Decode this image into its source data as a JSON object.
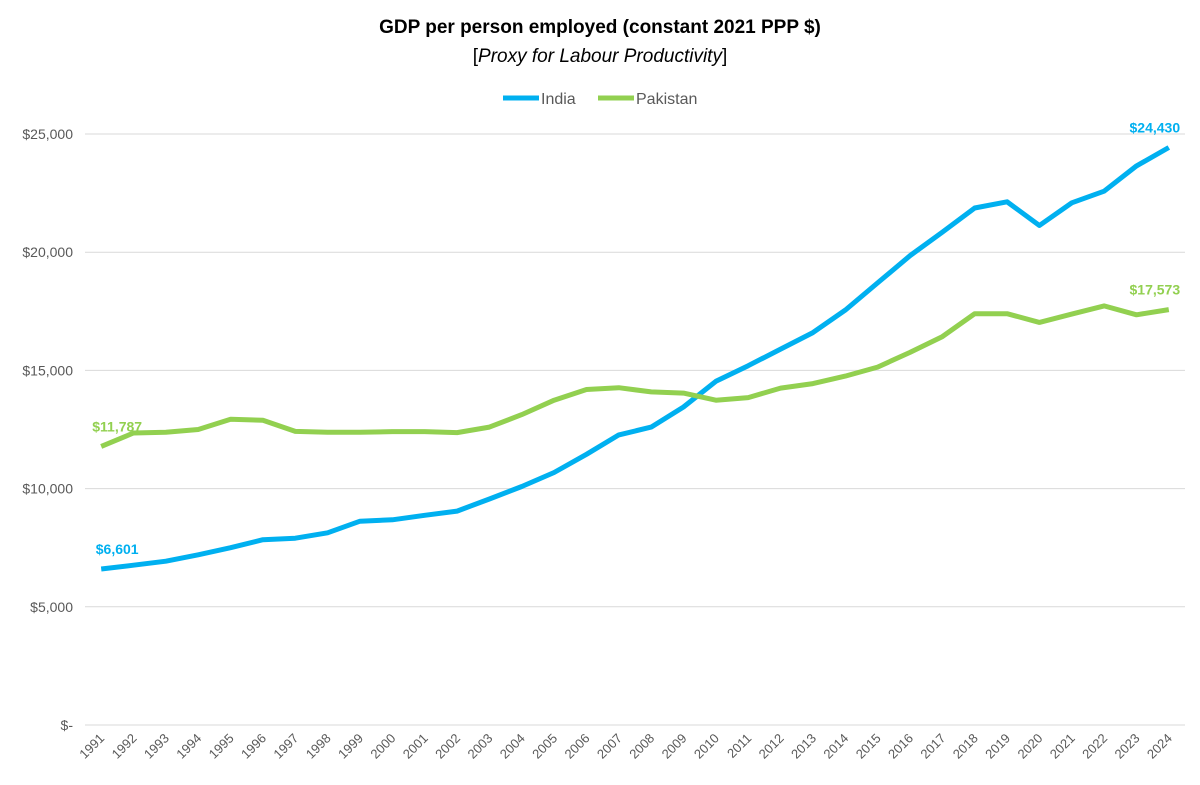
{
  "chart_data": {
    "type": "line",
    "title": "GDP per person employed (constant 2021 PPP $)",
    "subtitle_open": "[",
    "subtitle_italic": "Proxy for Labour Productivity",
    "subtitle_close": "]",
    "xlabel": "",
    "ylabel": "",
    "ylim": [
      0,
      25000
    ],
    "yticks": [
      0,
      5000,
      10000,
      15000,
      20000,
      25000
    ],
    "ytick_labels": [
      "$-",
      "$5,000",
      "$10,000",
      "$15,000",
      "$20,000",
      "$25,000"
    ],
    "grid": true,
    "legend_position": "top-center",
    "x": [
      "1991",
      "1992",
      "1993",
      "1994",
      "1995",
      "1996",
      "1997",
      "1998",
      "1999",
      "2000",
      "2001",
      "2002",
      "2003",
      "2004",
      "2005",
      "2006",
      "2007",
      "2008",
      "2009",
      "2010",
      "2011",
      "2012",
      "2013",
      "2014",
      "2015",
      "2016",
      "2017",
      "2018",
      "2019",
      "2020",
      "2021",
      "2022",
      "2023",
      "2024"
    ],
    "series": [
      {
        "name": "India",
        "color": "#00b0f0",
        "values": [
          6601,
          6760,
          6930,
          7200,
          7500,
          7840,
          7900,
          8130,
          8620,
          8680,
          8870,
          9050,
          9560,
          10090,
          10680,
          11450,
          12270,
          12600,
          13450,
          14540,
          15200,
          15900,
          16600,
          17550,
          18700,
          19850,
          20850,
          21870,
          22130,
          21130,
          22090,
          22580,
          23650,
          24430
        ],
        "labels": {
          "first": "$6,601",
          "last": "$24,430"
        }
      },
      {
        "name": "Pakistan",
        "color": "#92d050",
        "values": [
          11787,
          12350,
          12380,
          12500,
          12930,
          12890,
          12420,
          12380,
          12380,
          12410,
          12410,
          12370,
          12600,
          13130,
          13740,
          14190,
          14270,
          14090,
          14040,
          13740,
          13850,
          14250,
          14440,
          14760,
          15140,
          15760,
          16430,
          17400,
          17400,
          17030,
          17380,
          17730,
          17350,
          17573
        ],
        "labels": {
          "first": "$11,787",
          "last": "$17,573"
        }
      }
    ]
  }
}
